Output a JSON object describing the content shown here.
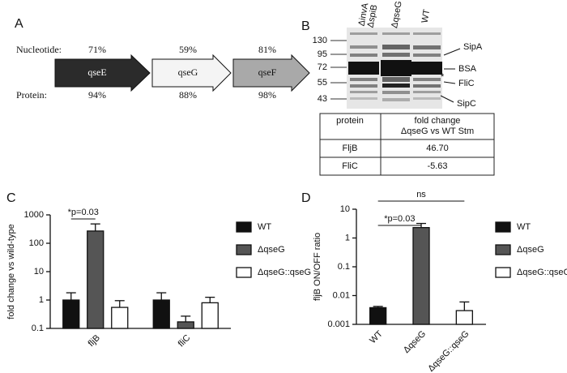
{
  "panel_a": {
    "letter": "A",
    "nucleotide_label": "Nucleotide:",
    "protein_label": "Protein:",
    "genes": [
      {
        "name": "qseE",
        "nucleotide": "71%",
        "protein": "94%"
      },
      {
        "name": "qseG",
        "nucleotide": "59%",
        "protein": "88%"
      },
      {
        "name": "qseF",
        "nucleotide": "81%",
        "protein": "98%"
      }
    ]
  },
  "panel_b": {
    "letter": "B",
    "lanes": [
      "ΔinvA",
      "ΔspiB",
      "ΔqseG",
      "WT"
    ],
    "markers": [
      "130",
      "95",
      "72",
      "55",
      "43"
    ],
    "bands": [
      "SipA",
      "BSA",
      "*",
      "FliC",
      "SipC"
    ],
    "table": {
      "header": [
        "protein",
        [
          "fold change",
          "ΔqseG vs WT Stm"
        ]
      ],
      "rows": [
        [
          "FljB",
          "46.70"
        ],
        [
          "FliC",
          "-5.63"
        ]
      ]
    }
  },
  "panel_letters": [
    "C",
    "D"
  ],
  "chart_data": [
    {
      "type": "bar",
      "ylabel": "fold change vs wild-type",
      "log_scale": true,
      "categories": [
        "fljB",
        "fliC"
      ],
      "ylim": [
        0.1,
        1000
      ],
      "yticks": [
        0.1,
        1,
        10,
        100,
        1000
      ],
      "series": [
        {
          "name": "WT",
          "color": "#111111",
          "values": [
            1.0,
            1.0
          ],
          "errors": [
            0.8,
            0.8
          ]
        },
        {
          "name": "ΔqseG",
          "color": "#555555",
          "values": [
            270,
            0.17
          ],
          "errors": [
            210,
            0.1
          ]
        },
        {
          "name": "ΔqseG::qseG",
          "color": "#ffffff",
          "values": [
            0.55,
            0.8
          ],
          "errors": [
            0.4,
            0.45
          ]
        }
      ],
      "annotations": [
        "*p=0.03"
      ]
    },
    {
      "type": "bar",
      "ylabel": "fljB ON/OFF ratio",
      "log_scale": true,
      "categories": [
        "WT",
        "ΔqseG",
        "ΔqseG::qseG"
      ],
      "ylim": [
        0.001,
        10
      ],
      "yticks": [
        0.001,
        0.01,
        0.1,
        1,
        10
      ],
      "series": [
        {
          "name": "WT",
          "color": "#111111",
          "values": [
            0.0038,
            null,
            null
          ],
          "errors": [
            0.0004,
            null,
            null
          ]
        },
        {
          "name": "ΔqseG",
          "color": "#555555",
          "values": [
            null,
            2.3,
            null
          ],
          "errors": [
            null,
            0.9,
            null
          ]
        },
        {
          "name": "ΔqseG::qseG",
          "color": "#ffffff",
          "values": [
            null,
            null,
            0.003
          ],
          "errors": [
            null,
            null,
            0.003
          ]
        }
      ],
      "annotations": [
        "*p=0.03",
        "ns"
      ]
    }
  ]
}
